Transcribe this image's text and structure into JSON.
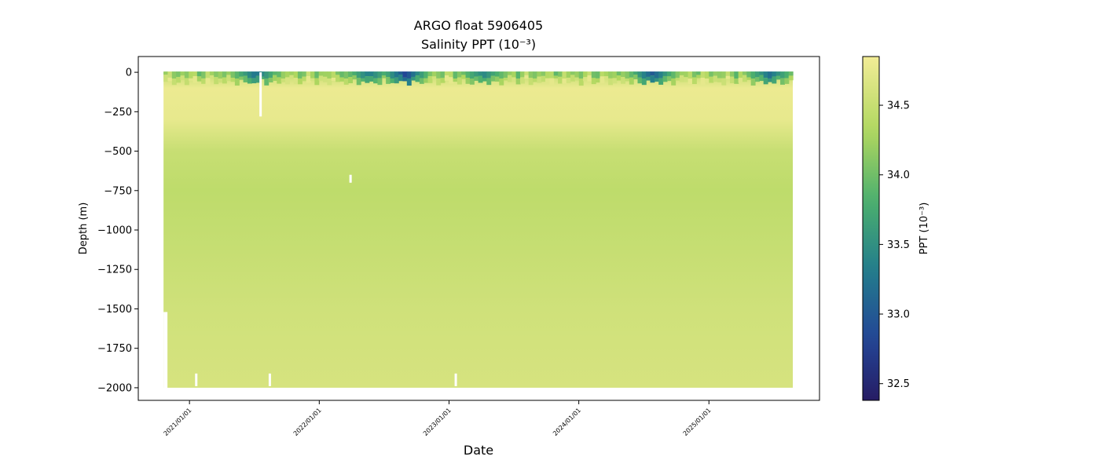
{
  "chart_data": {
    "type": "heatmap",
    "title": "ARGO float 5906405",
    "subtitle": "Salinity PPT (10⁻³)",
    "xlabel": "Date",
    "ylabel": "Depth (m)",
    "colorbar_label": "PPT (10⁻³)",
    "colormap": "viridis-like (dark blue → green → yellow)",
    "x_ticks": [
      "2021/01/01",
      "2022/01/01",
      "2023/01/01",
      "2024/01/01",
      "2025/01/01"
    ],
    "xlim": [
      "2020-08-10",
      "2025-11-08"
    ],
    "data_x_range": [
      "2020-10-20",
      "2025-08-25"
    ],
    "y_ticks": [
      0,
      -250,
      -500,
      -750,
      -1000,
      -1250,
      -1500,
      -1750,
      -2000
    ],
    "ylim": [
      -2080,
      100
    ],
    "colorbar_ticks": [
      32.5,
      33.0,
      33.5,
      34.0,
      34.5
    ],
    "colorbar_range": [
      32.38,
      34.85
    ],
    "grid": false,
    "salinity_profile": [
      {
        "depth": 0,
        "value": 33.9
      },
      {
        "depth": -15,
        "value": 34.2
      },
      {
        "depth": -40,
        "value": 34.6
      },
      {
        "depth": -100,
        "value": 34.8
      },
      {
        "depth": -300,
        "value": 34.76
      },
      {
        "depth": -500,
        "value": 34.5
      },
      {
        "depth": -750,
        "value": 34.43
      },
      {
        "depth": -1000,
        "value": 34.47
      },
      {
        "depth": -1500,
        "value": 34.57
      },
      {
        "depth": -2000,
        "value": 34.62
      }
    ],
    "surface_low_salinity_events": [
      {
        "date": "2021-07-01",
        "value": 33.2
      },
      {
        "date": "2022-05-15",
        "value": 33.3
      },
      {
        "date": "2022-08-25",
        "value": 32.8
      },
      {
        "date": "2023-04-01",
        "value": 33.4
      },
      {
        "date": "2024-07-20",
        "value": 33.0
      },
      {
        "date": "2025-06-15",
        "value": 33.2
      }
    ],
    "data_gaps": [
      {
        "date": "2021-07-20",
        "depth_range": [
          0,
          -280
        ]
      },
      {
        "date": "2022-03-30",
        "depth_range": [
          -650,
          -700
        ]
      },
      {
        "date": "2021-01-20",
        "depth_range": [
          -1910,
          -1990
        ]
      },
      {
        "date": "2021-08-15",
        "depth_range": [
          -1910,
          -1990
        ]
      },
      {
        "date": "2023-01-20",
        "depth_range": [
          -1910,
          -1990
        ]
      }
    ]
  }
}
